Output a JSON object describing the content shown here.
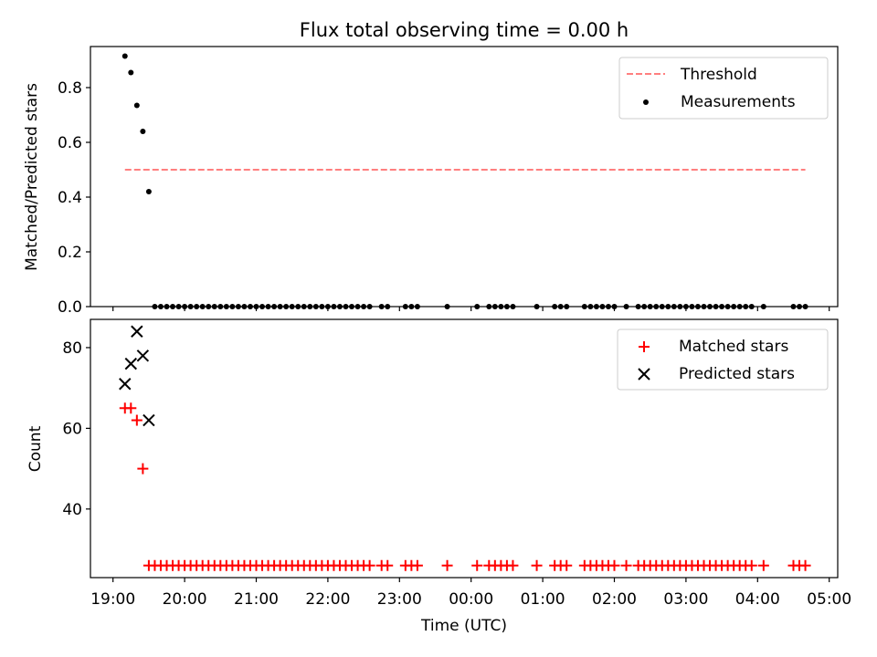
{
  "figure": {
    "title": "Flux total observing time = 0.00 h",
    "xlabel": "Time (UTC)"
  },
  "chart_data": [
    {
      "type": "scatter",
      "ylabel": "Matched/Predicted stars",
      "xlim": [
        "19:00",
        "05:00"
      ],
      "ylim": [
        0,
        0.95
      ],
      "xticks": [
        "19:00",
        "20:00",
        "21:00",
        "22:00",
        "23:00",
        "00:00",
        "01:00",
        "02:00",
        "03:00",
        "04:00",
        "05:00"
      ],
      "yticks": [
        "0.0",
        "0.2",
        "0.4",
        "0.6",
        "0.8"
      ],
      "grid": false,
      "legend_position": "top-right",
      "threshold": {
        "name": "Threshold",
        "value": 0.5,
        "x_start": "19:10",
        "x_end": "04:40",
        "color": "#ff7f7f"
      },
      "series": [
        {
          "name": "Measurements",
          "color": "#000000",
          "marker": "dot",
          "x": [
            "19:10",
            "19:15",
            "19:20",
            "19:25",
            "19:30",
            "19:35",
            "19:40",
            "19:45",
            "19:50",
            "19:55",
            "20:00",
            "20:05",
            "20:10",
            "20:15",
            "20:20",
            "20:25",
            "20:30",
            "20:35",
            "20:40",
            "20:45",
            "20:50",
            "20:55",
            "21:00",
            "21:05",
            "21:10",
            "21:15",
            "21:20",
            "21:25",
            "21:30",
            "21:35",
            "21:40",
            "21:45",
            "21:50",
            "21:55",
            "22:00",
            "22:05",
            "22:10",
            "22:15",
            "22:20",
            "22:25",
            "22:30",
            "22:35",
            "22:45",
            "22:50",
            "23:05",
            "23:10",
            "23:15",
            "23:40",
            "00:05",
            "00:15",
            "00:20",
            "00:25",
            "00:30",
            "00:35",
            "00:55",
            "01:10",
            "01:15",
            "01:20",
            "01:35",
            "01:40",
            "01:45",
            "01:50",
            "01:55",
            "02:00",
            "02:10",
            "02:20",
            "02:25",
            "02:30",
            "02:35",
            "02:40",
            "02:45",
            "02:50",
            "02:55",
            "03:00",
            "03:05",
            "03:10",
            "03:15",
            "03:20",
            "03:25",
            "03:30",
            "03:35",
            "03:40",
            "03:45",
            "03:50",
            "03:55",
            "04:05",
            "04:30",
            "04:35",
            "04:40"
          ],
          "y": [
            0.915,
            0.855,
            0.735,
            0.64,
            0.42,
            0,
            0,
            0,
            0,
            0,
            0,
            0,
            0,
            0,
            0,
            0,
            0,
            0,
            0,
            0,
            0,
            0,
            0,
            0,
            0,
            0,
            0,
            0,
            0,
            0,
            0,
            0,
            0,
            0,
            0,
            0,
            0,
            0,
            0,
            0,
            0,
            0,
            0,
            0,
            0,
            0,
            0,
            0,
            0,
            0,
            0,
            0,
            0,
            0,
            0,
            0,
            0,
            0,
            0,
            0,
            0,
            0,
            0,
            0,
            0,
            0,
            0,
            0,
            0,
            0,
            0,
            0,
            0,
            0,
            0,
            0,
            0,
            0,
            0,
            0,
            0,
            0,
            0,
            0,
            0,
            0,
            0,
            0,
            0
          ]
        }
      ]
    },
    {
      "type": "scatter",
      "ylabel": "Count",
      "xlim": [
        "19:00",
        "05:00"
      ],
      "ylim": [
        23,
        87
      ],
      "xticks": [
        "19:00",
        "20:00",
        "21:00",
        "22:00",
        "23:00",
        "00:00",
        "01:00",
        "02:00",
        "03:00",
        "04:00",
        "05:00"
      ],
      "yticks": [
        "40",
        "60",
        "80"
      ],
      "grid": false,
      "legend_position": "top-right",
      "series": [
        {
          "name": "Matched stars",
          "color": "#ff0000",
          "marker": "plus",
          "x": [
            "19:10",
            "19:15",
            "19:20",
            "19:25",
            "19:30",
            "19:35",
            "19:40",
            "19:45",
            "19:50",
            "19:55",
            "20:00",
            "20:05",
            "20:10",
            "20:15",
            "20:20",
            "20:25",
            "20:30",
            "20:35",
            "20:40",
            "20:45",
            "20:50",
            "20:55",
            "21:00",
            "21:05",
            "21:10",
            "21:15",
            "21:20",
            "21:25",
            "21:30",
            "21:35",
            "21:40",
            "21:45",
            "21:50",
            "21:55",
            "22:00",
            "22:05",
            "22:10",
            "22:15",
            "22:20",
            "22:25",
            "22:30",
            "22:35",
            "22:45",
            "22:50",
            "23:05",
            "23:10",
            "23:15",
            "23:40",
            "00:05",
            "00:15",
            "00:20",
            "00:25",
            "00:30",
            "00:35",
            "00:55",
            "01:10",
            "01:15",
            "01:20",
            "01:35",
            "01:40",
            "01:45",
            "01:50",
            "01:55",
            "02:00",
            "02:10",
            "02:20",
            "02:25",
            "02:30",
            "02:35",
            "02:40",
            "02:45",
            "02:50",
            "02:55",
            "03:00",
            "03:05",
            "03:10",
            "03:15",
            "03:20",
            "03:25",
            "03:30",
            "03:35",
            "03:40",
            "03:45",
            "03:50",
            "03:55",
            "04:05",
            "04:30",
            "04:35",
            "04:40"
          ],
          "y": [
            65,
            65,
            62,
            50,
            26,
            26,
            26,
            26,
            26,
            26,
            26,
            26,
            26,
            26,
            26,
            26,
            26,
            26,
            26,
            26,
            26,
            26,
            26,
            26,
            26,
            26,
            26,
            26,
            26,
            26,
            26,
            26,
            26,
            26,
            26,
            26,
            26,
            26,
            26,
            26,
            26,
            26,
            26,
            26,
            26,
            26,
            26,
            26,
            26,
            26,
            26,
            26,
            26,
            26,
            26,
            26,
            26,
            26,
            26,
            26,
            26,
            26,
            26,
            26,
            26,
            26,
            26,
            26,
            26,
            26,
            26,
            26,
            26,
            26,
            26,
            26,
            26,
            26,
            26,
            26,
            26,
            26,
            26,
            26,
            26,
            26,
            26,
            26,
            26
          ]
        },
        {
          "name": "Predicted stars",
          "color": "#000000",
          "marker": "x",
          "x": [
            "19:10",
            "19:15",
            "19:20",
            "19:25",
            "19:30"
          ],
          "y": [
            71,
            76,
            84,
            78,
            62
          ]
        }
      ]
    }
  ]
}
